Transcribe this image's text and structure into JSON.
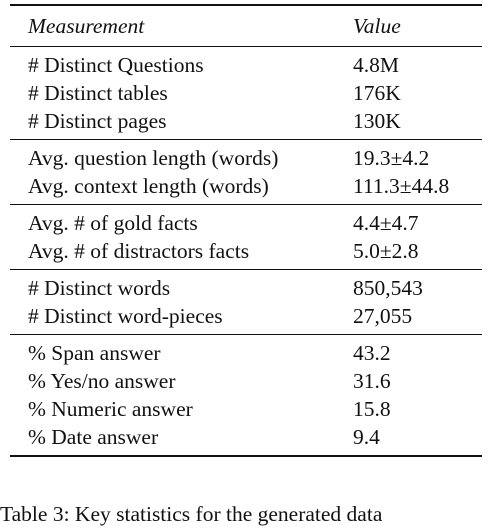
{
  "table": {
    "header": {
      "measurement": "Measurement",
      "value": "Value"
    },
    "groups": [
      {
        "rows": [
          {
            "label": "# Distinct Questions",
            "value": "4.8M"
          },
          {
            "label": "# Distinct tables",
            "value": "176K"
          },
          {
            "label": "# Distinct pages",
            "value": "130K"
          }
        ]
      },
      {
        "rows": [
          {
            "label": "Avg. question length (words)",
            "value": "19.3±4.2"
          },
          {
            "label": "Avg. context length (words)",
            "value": "111.3±44.8"
          }
        ]
      },
      {
        "rows": [
          {
            "label": "Avg. # of gold facts",
            "value": "4.4±4.7"
          },
          {
            "label": "Avg. # of distractors facts",
            "value": "5.0±2.8"
          }
        ]
      },
      {
        "rows": [
          {
            "label": "# Distinct words",
            "value": "850,543"
          },
          {
            "label": "# Distinct word-pieces",
            "value": "27,055"
          }
        ]
      },
      {
        "rows": [
          {
            "label": "% Span answer",
            "value": "43.2"
          },
          {
            "label": "% Yes/no answer",
            "value": "31.6"
          },
          {
            "label": "% Numeric answer",
            "value": "15.8"
          },
          {
            "label": "% Date answer",
            "value": "9.4"
          }
        ]
      }
    ]
  },
  "caption": "Table 3: Key statistics for the generated data"
}
